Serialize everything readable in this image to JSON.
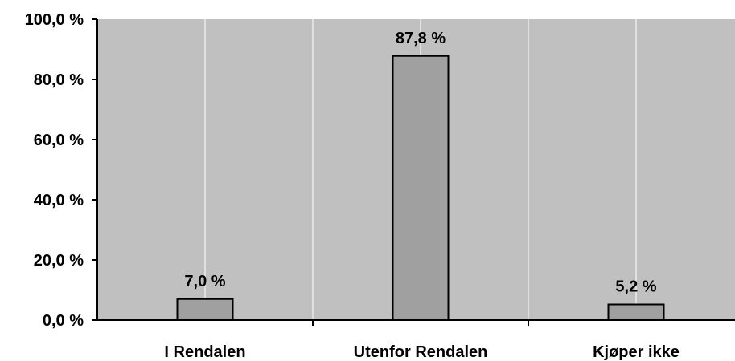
{
  "chart_data": {
    "type": "bar",
    "categories": [
      "I Rendalen",
      "Utenfor Rendalen",
      "Kjøper ikke"
    ],
    "values": [
      7.0,
      87.8,
      5.2
    ],
    "value_labels": [
      "7,0 %",
      "87,8 %",
      "5,2 %"
    ],
    "y_tick_labels": [
      "0,0 %",
      "20,0 %",
      "40,0 %",
      "60,0 %",
      "80,0 %",
      "100,0 %"
    ],
    "y_ticks": [
      0,
      20,
      40,
      60,
      80,
      100
    ],
    "ylim": [
      0,
      100
    ],
    "title": "",
    "xlabel": "",
    "ylabel": "",
    "grid": "vertical",
    "legend": "none",
    "colors": {
      "plot_background": "#c0c0c0",
      "bar_fill": "#a0a0a0",
      "bar_stroke": "#000000",
      "grid_line": "#ffffff",
      "axis": "#000000"
    }
  }
}
